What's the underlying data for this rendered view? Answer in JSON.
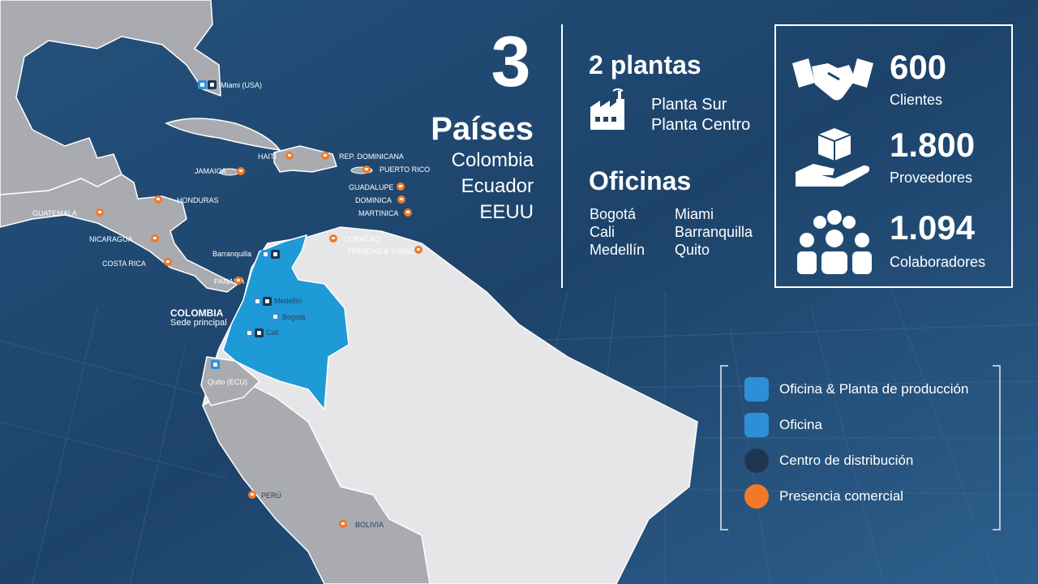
{
  "summary": {
    "count": "3",
    "label": "Países",
    "countries": [
      "Colombia",
      "Ecuador",
      "EEUU"
    ]
  },
  "plants": {
    "title": "2 plantas",
    "items": [
      "Planta Sur",
      "Planta Centro"
    ],
    "icon": "factory-icon"
  },
  "offices": {
    "title": "Oficinas",
    "col1": [
      "Bogotá",
      "Cali",
      "Medellín"
    ],
    "col2": [
      "Miami",
      "Barranquilla",
      "Quito"
    ]
  },
  "stats": [
    {
      "value": "600",
      "label": "Clientes",
      "icon": "handshake-icon"
    },
    {
      "value": "1.800",
      "label": "Proveedores",
      "icon": "box-hand-icon"
    },
    {
      "value": "1.094",
      "label": "Colaboradores",
      "icon": "team-icon"
    }
  ],
  "legend": [
    {
      "label": "Oficina & Planta de producción",
      "color": "#2f8fd6",
      "icon": "factory-icon"
    },
    {
      "label": "Oficina",
      "color": "#2f8fd6",
      "icon": "building-icon"
    },
    {
      "label": "Centro de distribución",
      "color": "#1e3552",
      "icon": "truck-icon"
    },
    {
      "label": "Presencia comercial",
      "color": "#f07a2a",
      "icon": "folder-icon"
    }
  ],
  "map": {
    "hq_title": "COLOMBIA",
    "hq_subtitle": "Sede principal",
    "labels": {
      "miami": "Miami (USA)",
      "haiti": "HAITÍ",
      "rep_dominicana": "REP. DOMINICANA",
      "jamaica": "JAMAICA",
      "puerto_rico": "PUERTO RICO",
      "guadalupe": "GUADALUPE",
      "dominica": "DOMINICA",
      "martinica": "MARTINICA",
      "honduras": "HONDURAS",
      "guatemala": "GUATEMALA",
      "nicaragua": "NICARAGUA",
      "costa_rica": "COSTA RICA",
      "panama": "PANAMÁ",
      "curacao": "CURACAO",
      "trinidad": "TRINIDAD & TOBAGO",
      "barranquilla": "Barranquilla",
      "medellin": "Medellín",
      "bogota": "Bogotá",
      "cali": "Cali",
      "quito": "Quito (ECU)",
      "peru": "PERÚ",
      "bolivia": "BOLIVIA"
    }
  },
  "colors": {
    "background": "#1b3f63",
    "land": "#a9abb1",
    "south_america": "#e6e6e8",
    "colombia": "#1e9ad6",
    "accent_orange": "#f07a2a"
  }
}
